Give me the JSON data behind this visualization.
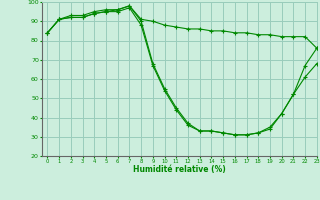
{
  "xlabel": "Humidité relative (%)",
  "background_color": "#cceedd",
  "grid_color": "#99ccbb",
  "line_color": "#008800",
  "x": [
    0,
    1,
    2,
    3,
    4,
    5,
    6,
    7,
    8,
    9,
    10,
    11,
    12,
    13,
    14,
    15,
    16,
    17,
    18,
    19,
    20,
    21,
    22,
    23
  ],
  "y_max": [
    84,
    91,
    93,
    93,
    95,
    96,
    96,
    98,
    91,
    90,
    88,
    87,
    86,
    86,
    85,
    85,
    84,
    84,
    83,
    83,
    82,
    82,
    82,
    76
  ],
  "y_mean": [
    84,
    91,
    92,
    92,
    94,
    95,
    96,
    98,
    90,
    68,
    55,
    45,
    37,
    33,
    33,
    32,
    31,
    31,
    32,
    35,
    42,
    52,
    61,
    68
  ],
  "y_min": [
    84,
    91,
    92,
    92,
    94,
    95,
    95,
    97,
    88,
    67,
    54,
    44,
    36,
    33,
    33,
    32,
    31,
    31,
    32,
    34,
    42,
    52,
    67,
    76
  ],
  "ylim": [
    20,
    100
  ],
  "xlim": [
    -0.5,
    23
  ],
  "yticks": [
    20,
    30,
    40,
    50,
    60,
    70,
    80,
    90,
    100
  ],
  "xticks": [
    0,
    1,
    2,
    3,
    4,
    5,
    6,
    7,
    8,
    9,
    10,
    11,
    12,
    13,
    14,
    15,
    16,
    17,
    18,
    19,
    20,
    21,
    22,
    23
  ]
}
